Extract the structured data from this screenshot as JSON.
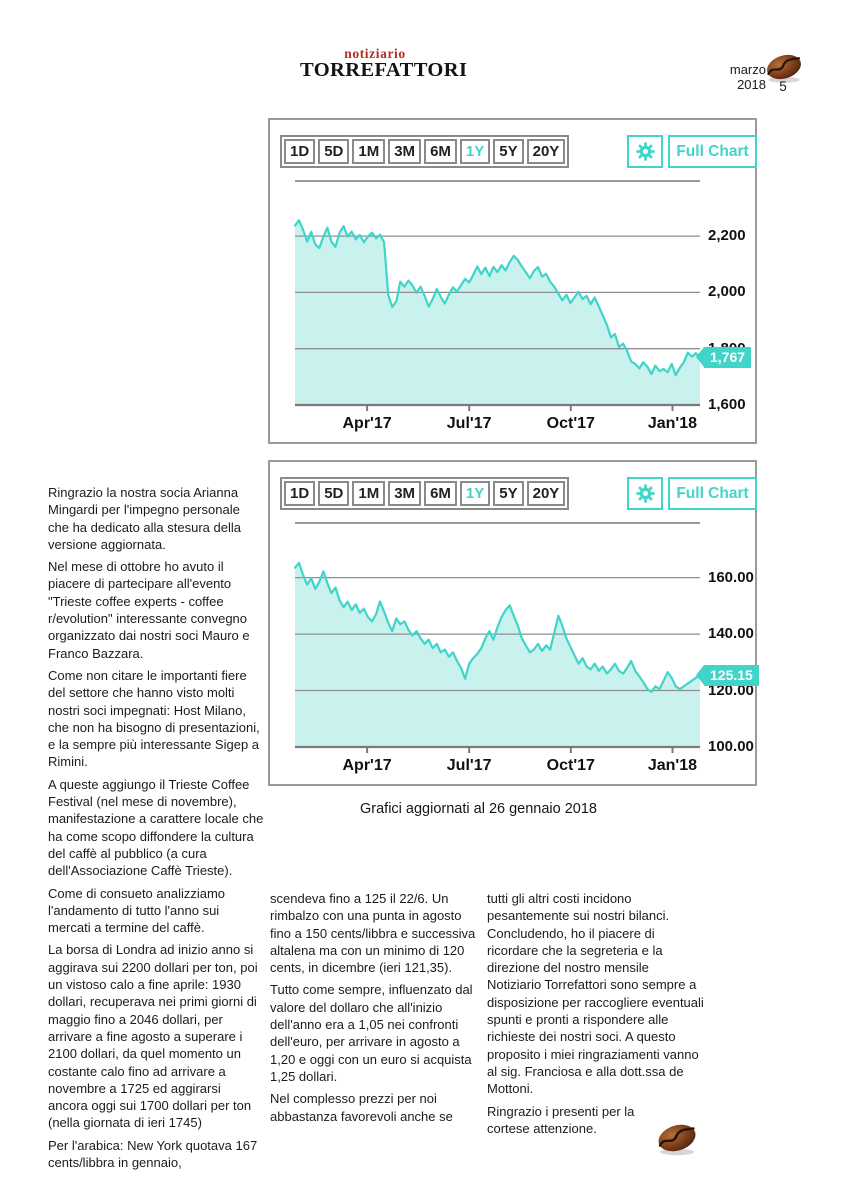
{
  "masthead": {
    "top": "notiziario",
    "main": "TORREFATTORI"
  },
  "page": {
    "issue_date": "marzo 2018",
    "number": "5"
  },
  "toolbar": {
    "ranges": [
      "1D",
      "5D",
      "1M",
      "3M",
      "6M",
      "1Y",
      "5Y",
      "20Y"
    ],
    "active_range": "1Y",
    "full_chart_label": "Full Chart",
    "gear_icon": "gear-icon"
  },
  "caption": "Grafici aggiornati al 26 gennaio 2018",
  "colors": {
    "accent": "#41d4c8",
    "area_fill": "#c9f2ee",
    "gridline": "#8f8f8f",
    "axis": "#7a7a7a",
    "masthead_red": "#b03025",
    "card_border": "#9a9a9a",
    "button_border": "#8a8a8a",
    "text": "#1c1c1c",
    "badge_text": "#ffffff",
    "bean_brown": "#6b3317"
  },
  "chart_data": [
    {
      "type": "area",
      "legend_position": "none",
      "grid": true,
      "last_value": 1767,
      "last_price_label": "1,767",
      "ylim": [
        1600,
        2321
      ],
      "y_gridlines": [
        {
          "value": 2200,
          "label": "2,200"
        },
        {
          "value": 2000,
          "label": "2,000"
        },
        {
          "value": 1800,
          "label": "1,800"
        },
        {
          "value": 1600,
          "label": "1,600",
          "is_axis": true
        }
      ],
      "x_ticks": [
        {
          "label": "Apr'17",
          "pos": 0.178
        },
        {
          "label": "Jul'17",
          "pos": 0.43
        },
        {
          "label": "Oct'17",
          "pos": 0.681
        },
        {
          "label": "Jan'18",
          "pos": 0.932
        }
      ],
      "values": [
        2238,
        2256,
        2222,
        2180,
        2215,
        2170,
        2158,
        2198,
        2230,
        2180,
        2162,
        2212,
        2235,
        2198,
        2216,
        2188,
        2204,
        2178,
        2198,
        2212,
        2192,
        2205,
        2178,
        1992,
        1948,
        1968,
        2038,
        2020,
        2042,
        2025,
        1998,
        2020,
        1988,
        1950,
        1976,
        2012,
        1984,
        1960,
        1992,
        2018,
        2002,
        2026,
        2048,
        2035,
        2062,
        2092,
        2065,
        2088,
        2058,
        2090,
        2072,
        2096,
        2078,
        2108,
        2130,
        2115,
        2092,
        2072,
        2050,
        2076,
        2090,
        2056,
        2066,
        2038,
        2020,
        1996,
        1972,
        1992,
        1962,
        1982,
        2002,
        1976,
        1988,
        1958,
        1982,
        1950,
        1918,
        1885,
        1840,
        1852,
        1806,
        1818,
        1792,
        1755,
        1746,
        1730,
        1752,
        1736,
        1710,
        1740,
        1720,
        1728,
        1716,
        1746,
        1706,
        1732,
        1752,
        1786,
        1772,
        1784,
        1767
      ]
    },
    {
      "type": "area",
      "legend_position": "none",
      "grid": true,
      "last_value": 125.15,
      "last_price_label": "125.15",
      "ylim": [
        100,
        171.9
      ],
      "y_gridlines": [
        {
          "value": 160,
          "label": "160.00"
        },
        {
          "value": 140,
          "label": "140.00"
        },
        {
          "value": 120,
          "label": "120.00"
        },
        {
          "value": 100,
          "label": "100.00",
          "is_axis": true
        }
      ],
      "x_ticks": [
        {
          "label": "Apr'17",
          "pos": 0.178
        },
        {
          "label": "Jul'17",
          "pos": 0.43
        },
        {
          "label": "Oct'17",
          "pos": 0.681
        },
        {
          "label": "Jan'18",
          "pos": 0.932
        }
      ],
      "values": [
        163.5,
        165.2,
        161.0,
        157.5,
        159.8,
        156.0,
        158.5,
        162.2,
        158.0,
        154.5,
        156.5,
        152.0,
        149.5,
        151.5,
        148.5,
        150.5,
        147.5,
        149.0,
        146.0,
        144.5,
        147.0,
        151.5,
        148.0,
        144.0,
        141.0,
        145.5,
        143.5,
        144.5,
        141.5,
        139.5,
        141.0,
        138.5,
        136.5,
        138.0,
        135.0,
        136.5,
        133.5,
        134.5,
        132.0,
        133.5,
        130.5,
        128.0,
        124.2,
        129.5,
        131.5,
        133.0,
        135.0,
        138.5,
        141.0,
        138.0,
        142.5,
        146.0,
        148.5,
        150.2,
        146.5,
        143.0,
        138.5,
        136.0,
        133.5,
        134.5,
        136.5,
        134.0,
        136.0,
        134.5,
        140.5,
        146.5,
        143.0,
        138.5,
        135.5,
        132.5,
        129.5,
        131.5,
        128.5,
        127.5,
        129.5,
        127.0,
        128.5,
        126.0,
        127.5,
        129.5,
        127.0,
        126.0,
        128.0,
        130.5,
        127.0,
        125.0,
        123.0,
        120.5,
        119.5,
        121.5,
        120.5,
        123.5,
        126.5,
        124.5,
        121.5,
        120.5,
        121.5,
        122.5,
        123.5,
        124.5,
        125.15
      ]
    }
  ],
  "columns": {
    "left": [
      "Ringrazio la nostra socia Arianna Mingardi per l'impegno personale che ha dedicato alla stesura della versione aggiornata.",
      "Nel mese di ottobre ho avuto il piacere di partecipare all'evento \"Trieste coffee experts - coffee r/evolution\" interessante convegno organizzato dai nostri soci Mauro e Franco Bazzara.",
      "Come non citare le importanti fiere del settore che hanno visto molti nostri soci impegnati: Host Milano, che non ha bisogno di presentazioni, e la sempre più interessante Sigep a Rimini.",
      "A queste aggiungo il Trieste Coffee Festival (nel mese di novembre), manifestazione a carattere locale che ha come scopo diffondere la cultura del caffè al pubblico (a cura dell'Associazione Caffè Trieste).",
      "Come di consueto analizziamo l'andamento di tutto l'anno sui mercati a termine del caffè.",
      "La borsa di Londra ad inizio anno si aggirava sui 2200 dollari per ton, poi un vistoso calo a fine aprile: 1930 dollari, recuperava nei primi giorni di maggio fino a 2046 dollari, per arrivare a fine agosto a superare i 2100 dollari, da quel momento un costante calo fino ad arrivare a novembre a 1725 ed aggirarsi ancora oggi sui 1700 dollari per ton (nella giornata di ieri 1745)",
      "Per l'arabica: New York quotava 167 cents/libbra in gennaio,"
    ],
    "middle": [
      "scendeva fino a 125 il 22/6. Un rimbalzo con una punta in agosto fino a 150 cents/libbra e successiva altalena ma con un minimo di 120 cents, in dicembre (ieri 121,35).",
      "Tutto come sempre, influenzato dal valore del dollaro che all'inizio dell'anno era a 1,05 nei confronti dell'euro, per arrivare in agosto a 1,20 e oggi con un euro si acquista 1,25 dollari.",
      "Nel complesso prezzi per noi abbastanza favorevoli anche se"
    ],
    "right": [
      "tutti gli altri costi incidono pesantemente sui nostri bilanci. Concludendo, ho il piacere di ricordare che la segreteria e la direzione del nostro mensile Notiziario Torrefattori sono sempre a disposizione per raccogliere eventuali spunti e pronti a rispondere alle richieste dei nostri soci. A questo proposito i miei ringraziamenti vanno al sig. Franciosa e alla dott.ssa de Mottoni.",
      "Ringrazio i presenti per la cortese attenzione."
    ]
  }
}
